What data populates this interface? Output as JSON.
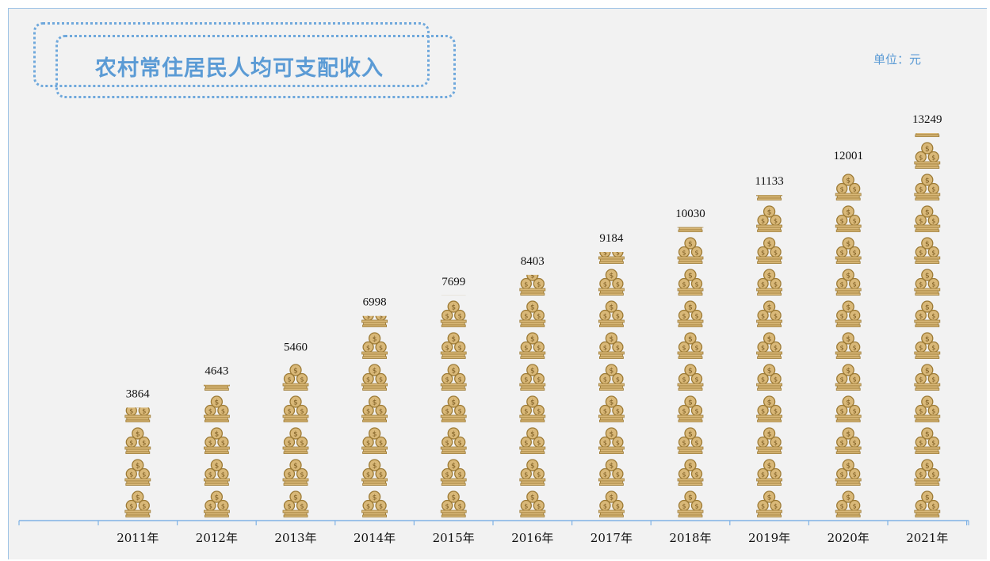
{
  "title": "农村常住居民人均可支配收入",
  "unit_label": "单位：元",
  "colors": {
    "accent": "#5b9bd5",
    "axis": "#7fb2e5",
    "coin": "#d4b06a",
    "coin_stroke": "#a8843a",
    "background": "#f2f2f2"
  },
  "chart_data": {
    "type": "bar",
    "title": "农村常住居民人均可支配收入",
    "ylabel": "",
    "xlabel": "",
    "unit": "单位：元",
    "categories": [
      "2011年",
      "2012年",
      "2013年",
      "2014年",
      "2015年",
      "2016年",
      "2017年",
      "2018年",
      "2019年",
      "2020年",
      "2021年"
    ],
    "values": [
      3864,
      4643,
      5460,
      6998,
      7699,
      8403,
      9184,
      10030,
      11133,
      12001,
      13249
    ],
    "ylim": [
      0,
      14000
    ],
    "grid": false,
    "legend": "none",
    "bar_style": "stacked coin pictograph icons",
    "icon": "coin-stack-icon"
  }
}
